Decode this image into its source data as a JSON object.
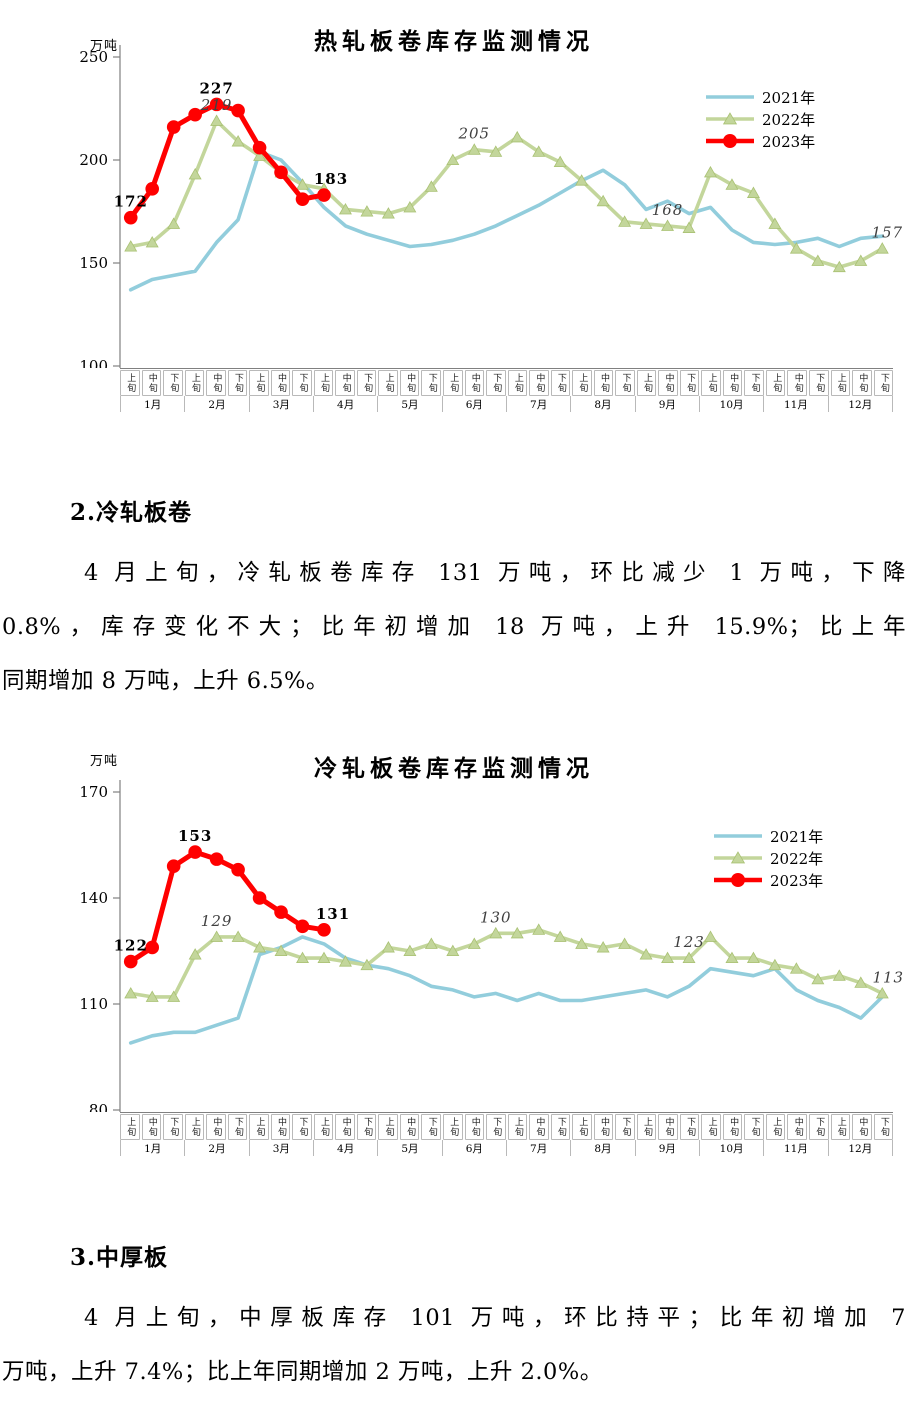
{
  "document": {
    "sections": [
      {
        "heading": "2.冷轧板卷",
        "lines": [
          "4 月上旬，冷轧板卷库存 131 万吨，环比减少 1 万吨，下降",
          "0.8%，库存变化不大；比年初增加 18 万吨，上升 15.9%；比上年",
          "同期增加 8 万吨，上升 6.5%。"
        ]
      },
      {
        "heading": "3.中厚板",
        "lines": [
          "4 月上旬，中厚板库存 101 万吨，环比持平；比年初增加 7",
          "万吨，上升 7.4%；比上年同期增加 2 万吨，上升 2.0%。"
        ]
      }
    ]
  },
  "periods": [
    "上旬",
    "中旬",
    "下旬"
  ],
  "months": [
    "1月",
    "2月",
    "3月",
    "4月",
    "5月",
    "6月",
    "7月",
    "8月",
    "9月",
    "10月",
    "11月",
    "12月"
  ],
  "chart_data": [
    {
      "type": "line",
      "title": "热轧板卷库存监测情况",
      "unit": "万吨",
      "ylim": [
        100,
        250
      ],
      "yticks": [
        100,
        150,
        200,
        250
      ],
      "x_structure": "12 months x 3 periods (上旬/中旬/下旬), 36 points per year",
      "grid": "off",
      "legend_position": "upper-right",
      "series": [
        {
          "name": "2021年",
          "color": "#92CDDC",
          "marker": "none",
          "values": [
            137,
            142,
            144,
            146,
            160,
            171,
            204,
            200,
            189,
            177,
            168,
            164,
            161,
            158,
            159,
            161,
            164,
            168,
            173,
            178,
            184,
            190,
            195,
            188,
            176,
            180,
            174,
            177,
            166,
            160,
            159,
            160,
            162,
            158,
            162,
            163
          ]
        },
        {
          "name": "2022年",
          "color": "#C3D69B",
          "marker": "triangle",
          "values": [
            158,
            160,
            169,
            193,
            219,
            209,
            202,
            194,
            188,
            186,
            176,
            175,
            174,
            177,
            187,
            200,
            205,
            204,
            211,
            204,
            199,
            190,
            180,
            170,
            169,
            168,
            167,
            194,
            188,
            184,
            169,
            157,
            151,
            148,
            151,
            157
          ]
        },
        {
          "name": "2023年",
          "color": "#FF0000",
          "marker": "circle",
          "values": [
            172,
            186,
            216,
            222,
            227,
            224,
            206,
            194,
            181,
            183
          ]
        }
      ],
      "labels": [
        {
          "series": 1,
          "index": 4,
          "text": "219"
        },
        {
          "series": 1,
          "index": 16,
          "text": "205"
        },
        {
          "series": 1,
          "index": 25,
          "text": "168"
        },
        {
          "series": 1,
          "index": 35,
          "text": "157",
          "dx": 5
        },
        {
          "series": 2,
          "index": 0,
          "text": "172"
        },
        {
          "series": 2,
          "index": 4,
          "text": "227"
        },
        {
          "series": 2,
          "index": 9,
          "text": "183",
          "dx": 7
        }
      ]
    },
    {
      "type": "line",
      "title": "冷轧板卷库存监测情况",
      "unit": "万吨",
      "ylim": [
        80,
        170
      ],
      "yticks": [
        80,
        110,
        140,
        170
      ],
      "x_structure": "12 months x 3 periods (上旬/中旬/下旬), 36 points per year",
      "grid": "off",
      "legend_position": "upper-right",
      "series": [
        {
          "name": "2021年",
          "color": "#92CDDC",
          "marker": "none",
          "values": [
            99,
            101,
            102,
            102,
            104,
            106,
            124,
            126,
            129,
            127,
            123,
            121,
            120,
            118,
            115,
            114,
            112,
            113,
            111,
            113,
            111,
            111,
            112,
            113,
            114,
            112,
            115,
            120,
            119,
            118,
            120,
            114,
            111,
            109,
            106,
            112
          ]
        },
        {
          "name": "2022年",
          "color": "#C3D69B",
          "marker": "triangle",
          "values": [
            113,
            112,
            112,
            124,
            129,
            129,
            126,
            125,
            123,
            123,
            122,
            121,
            126,
            125,
            127,
            125,
            127,
            130,
            130,
            131,
            129,
            127,
            126,
            127,
            124,
            123,
            123,
            129,
            123,
            123,
            121,
            120,
            117,
            118,
            116,
            113
          ]
        },
        {
          "name": "2023年",
          "color": "#FF0000",
          "marker": "circle",
          "values": [
            122,
            126,
            149,
            153,
            151,
            148,
            140,
            136,
            132,
            131
          ]
        }
      ],
      "labels": [
        {
          "series": 1,
          "index": 4,
          "text": "129"
        },
        {
          "series": 1,
          "index": 17,
          "text": "130"
        },
        {
          "series": 1,
          "index": 26,
          "text": "123"
        },
        {
          "series": 1,
          "index": 35,
          "text": "113",
          "dx": 6
        },
        {
          "series": 2,
          "index": 0,
          "text": "122"
        },
        {
          "series": 2,
          "index": 3,
          "text": "153"
        },
        {
          "series": 2,
          "index": 9,
          "text": "131",
          "dx": 9
        }
      ]
    }
  ]
}
